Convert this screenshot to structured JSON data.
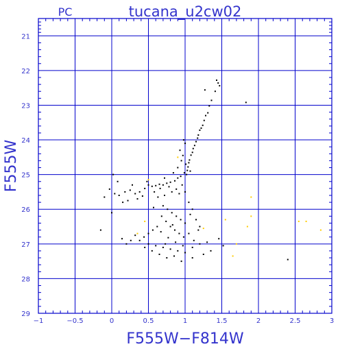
{
  "header": {
    "camera_label": "PC",
    "title": "tucana_u2cw02"
  },
  "colors": {
    "axis": "#0000cc",
    "grid": "#0000cc",
    "text": "#3333cc",
    "star": "#000000",
    "highlight": "#ffcc00",
    "background": "#ffffff"
  },
  "chart_data": {
    "type": "scatter",
    "title": "tucana_u2cw02",
    "xlabel": "F555W−F814W",
    "ylabel": "F555W",
    "xlim": [
      -1,
      3
    ],
    "ylim": [
      29,
      20.5
    ],
    "y_inverted": true,
    "grid": true,
    "x_ticks": [
      -1,
      -0.5,
      0,
      0.5,
      1,
      1.5,
      2,
      2.5,
      3
    ],
    "x_tick_labels": [
      "−1",
      "−0.5",
      "0",
      "0.5",
      "1",
      "1.5",
      "2",
      "2.5",
      "3"
    ],
    "y_ticks": [
      21,
      22,
      23,
      24,
      25,
      26,
      27,
      28,
      29
    ],
    "y_tick_labels": [
      "21",
      "22",
      "23",
      "24",
      "25",
      "26",
      "27",
      "28",
      "29"
    ],
    "series": [
      {
        "color": "#000000",
        "points": [
          [
            1.43,
            22.28
          ],
          [
            1.45,
            22.36
          ],
          [
            1.47,
            22.44
          ],
          [
            1.41,
            22.6
          ],
          [
            1.36,
            22.86
          ],
          [
            1.83,
            22.92
          ],
          [
            1.27,
            22.56
          ],
          [
            1.33,
            23.02
          ],
          [
            1.31,
            23.22
          ],
          [
            1.28,
            23.3
          ],
          [
            1.26,
            23.44
          ],
          [
            1.24,
            23.58
          ],
          [
            1.22,
            23.66
          ],
          [
            1.2,
            23.72
          ],
          [
            1.18,
            23.86
          ],
          [
            1.17,
            23.95
          ],
          [
            1.15,
            24.05
          ],
          [
            1.13,
            24.16
          ],
          [
            1.11,
            24.25
          ],
          [
            1.1,
            24.36
          ],
          [
            1.08,
            24.44
          ],
          [
            1.06,
            24.58
          ],
          [
            1.05,
            24.66
          ],
          [
            1.04,
            24.78
          ],
          [
            1.03,
            24.88
          ],
          [
            1.02,
            25.0
          ],
          [
            1.0,
            24.1
          ],
          [
            0.97,
            24.45
          ],
          [
            1.07,
            24.9
          ],
          [
            1.01,
            24.7
          ],
          [
            0.99,
            24.95
          ],
          [
            0.94,
            25.05
          ],
          [
            0.9,
            25.1
          ],
          [
            0.86,
            25.18
          ],
          [
            0.8,
            25.22
          ],
          [
            0.75,
            25.25
          ],
          [
            0.7,
            25.3
          ],
          [
            0.65,
            25.28
          ],
          [
            0.6,
            25.32
          ],
          [
            0.55,
            25.34
          ],
          [
            0.5,
            25.3
          ],
          [
            0.45,
            25.4
          ],
          [
            0.38,
            25.5
          ],
          [
            0.32,
            25.55
          ],
          [
            0.25,
            25.45
          ],
          [
            0.18,
            25.5
          ],
          [
            0.1,
            25.6
          ],
          [
            0.04,
            25.55
          ],
          [
            -0.03,
            25.42
          ],
          [
            -0.1,
            25.65
          ],
          [
            0.02,
            25.0
          ],
          [
            0.08,
            25.2
          ],
          [
            0.15,
            25.8
          ],
          [
            0.22,
            25.75
          ],
          [
            0.28,
            25.3
          ],
          [
            0.35,
            25.7
          ],
          [
            0.42,
            25.62
          ],
          [
            0.48,
            25.2
          ],
          [
            0.58,
            25.5
          ],
          [
            0.66,
            25.4
          ],
          [
            0.72,
            25.6
          ],
          [
            0.78,
            25.35
          ],
          [
            0.82,
            25.5
          ],
          [
            0.88,
            25.42
          ],
          [
            0.92,
            25.55
          ],
          [
            0.96,
            25.3
          ],
          [
            1.0,
            25.5
          ],
          [
            0.7,
            25.9
          ],
          [
            0.76,
            26.0
          ],
          [
            0.82,
            26.1
          ],
          [
            0.88,
            26.2
          ],
          [
            0.94,
            26.3
          ],
          [
            1.0,
            26.4
          ],
          [
            0.68,
            26.2
          ],
          [
            0.74,
            26.35
          ],
          [
            0.8,
            26.5
          ],
          [
            0.86,
            26.6
          ],
          [
            0.92,
            26.7
          ],
          [
            0.98,
            26.8
          ],
          [
            0.62,
            26.5
          ],
          [
            0.56,
            26.6
          ],
          [
            0.5,
            26.7
          ],
          [
            0.44,
            26.8
          ],
          [
            0.38,
            26.9
          ],
          [
            0.32,
            26.75
          ],
          [
            0.26,
            26.9
          ],
          [
            0.2,
            27.0
          ],
          [
            0.14,
            26.85
          ],
          [
            0.5,
            27.0
          ],
          [
            0.6,
            27.05
          ],
          [
            0.7,
            27.1
          ],
          [
            0.8,
            27.15
          ],
          [
            0.9,
            27.2
          ],
          [
            1.0,
            27.25
          ],
          [
            1.1,
            27.1
          ],
          [
            1.2,
            27.0
          ],
          [
            1.3,
            26.95
          ],
          [
            1.35,
            27.2
          ],
          [
            1.25,
            27.3
          ],
          [
            1.1,
            27.4
          ],
          [
            0.95,
            27.5
          ],
          [
            0.85,
            27.35
          ],
          [
            0.75,
            27.4
          ],
          [
            0.65,
            27.3
          ],
          [
            0.55,
            27.2
          ],
          [
            0.45,
            27.1
          ],
          [
            1.05,
            25.8
          ],
          [
            1.1,
            26.0
          ],
          [
            1.15,
            26.3
          ],
          [
            1.2,
            26.5
          ],
          [
            1.05,
            26.7
          ],
          [
            1.12,
            26.9
          ],
          [
            1.18,
            26.6
          ],
          [
            0.72,
            25.1
          ],
          [
            0.84,
            24.95
          ],
          [
            0.9,
            24.8
          ],
          [
            0.95,
            24.6
          ],
          [
            0.93,
            24.3
          ],
          [
            0.98,
            24.0
          ],
          [
            -0.15,
            26.6
          ],
          [
            0.0,
            26.1
          ],
          [
            2.4,
            27.45
          ],
          [
            1.52,
            27.05
          ],
          [
            1.46,
            26.85
          ],
          [
            0.63,
            25.65
          ],
          [
            0.57,
            25.95
          ],
          [
            0.67,
            26.65
          ],
          [
            0.77,
            26.82
          ],
          [
            0.87,
            26.95
          ],
          [
            0.97,
            27.05
          ],
          [
            1.07,
            26.15
          ],
          [
            0.73,
            27.0
          ],
          [
            0.83,
            26.45
          ]
        ]
      },
      {
        "color": "#ffcc00",
        "points": [
          [
            0.5,
            25.15
          ],
          [
            0.9,
            24.5
          ],
          [
            1.7,
            27.0
          ],
          [
            1.65,
            27.35
          ],
          [
            1.9,
            25.65
          ],
          [
            1.85,
            26.5
          ],
          [
            1.9,
            26.2
          ],
          [
            2.55,
            26.35
          ],
          [
            2.65,
            26.35
          ],
          [
            2.85,
            26.6
          ],
          [
            1.55,
            26.3
          ],
          [
            0.45,
            26.35
          ],
          [
            0.35,
            26.7
          ],
          [
            1.25,
            26.55
          ]
        ]
      }
    ]
  }
}
